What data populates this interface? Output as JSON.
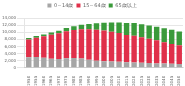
{
  "chart_data": {
    "type": "bar",
    "stacked": true,
    "legend": "top",
    "grid": true,
    "categories": [
      "1950",
      "1955",
      "1960",
      "1965",
      "1970",
      "1975",
      "1980",
      "1985",
      "1990",
      "1995",
      "2000",
      "2005",
      "2010",
      "2015",
      "2020",
      "2025",
      "2030",
      "2035",
      "2040",
      "2045",
      "2050"
    ],
    "series": [
      {
        "name": "0～14歳",
        "color": "#a6a6a6",
        "values": [
          2979,
          3012,
          2807,
          2553,
          2482,
          2722,
          2751,
          2603,
          2249,
          2001,
          1847,
          1752,
          1680,
          1589,
          1503,
          1407,
          1321,
          1246,
          1194,
          1138,
          1077
        ]
      },
      {
        "name": "15～64歳",
        "color": "#e0304a",
        "values": [
          4966,
          5473,
          6047,
          6744,
          7212,
          7581,
          7883,
          8251,
          8590,
          8716,
          8622,
          8409,
          8103,
          7629,
          7509,
          7170,
          6875,
          6494,
          5978,
          5584,
          5275
        ]
      },
      {
        "name": "65歳以上",
        "color": "#3a9a3a",
        "values": [
          411,
          479,
          540,
          624,
          739,
          887,
          1065,
          1247,
          1489,
          1826,
          2204,
          2576,
          2948,
          3387,
          3603,
          3653,
          3696,
          3773,
          3921,
          3945,
          3888
        ]
      }
    ],
    "ylim": [
      0,
      14000
    ],
    "yticks": [
      0,
      2000,
      4000,
      6000,
      8000,
      10000,
      12000,
      14000
    ]
  }
}
